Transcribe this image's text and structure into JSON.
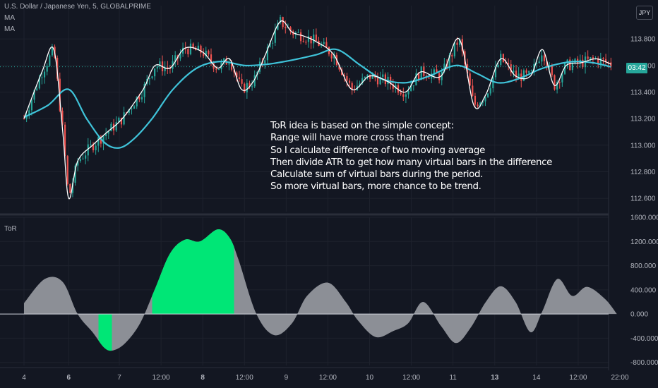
{
  "header": {
    "symbol_line": "U.S. Dollar / Japanese Yen, 5, GLOBALPRIME",
    "indicator_1": "MA",
    "indicator_2": "MA",
    "currency_badge": "JPY",
    "price_countdown": "03:42",
    "sub_pane_title": "ToR"
  },
  "annotation": {
    "lines": [
      "ToR idea is based on the simple concept:",
      "Range will have more cross than trend",
      "So I calculate difference of two moving average",
      "Then divide ATR to get how many virtual bars in the difference",
      "Calculate sum of  virtual bars during the period.",
      "So more virtual bars, more chance to be trend."
    ]
  },
  "colors": {
    "background": "#131722",
    "grid": "#1e222d",
    "ma_fast": "#ffffff",
    "ma_slow": "#3fc3d9",
    "candle_up": "#26a69a",
    "candle_down": "#ef5350",
    "tor_gray": "#8c8f96",
    "tor_green": "#00e676",
    "price_line": "#26a69a"
  },
  "chart_data": [
    {
      "type": "candlestick",
      "title": "U.S. Dollar / Japanese Yen, 5, GLOBALPRIME",
      "xlabel": "",
      "ylabel": "",
      "ylim": [
        112.5,
        114.05
      ],
      "yticks": [
        "113.800",
        "113.600",
        "113.400",
        "113.200",
        "113.000",
        "112.800",
        "112.600"
      ],
      "xticks": [
        "4",
        "6",
        "7",
        "12:00",
        "8",
        "12:00",
        "9",
        "12:00",
        "10",
        "12:00",
        "11",
        "13",
        "14",
        "12:00",
        "22:00"
      ],
      "xticks_pos": [
        0,
        1.5,
        3.2,
        4.6,
        6.0,
        7.4,
        8.8,
        10.2,
        11.6,
        13.0,
        14.4,
        15.8,
        17.2,
        18.6,
        20.0
      ],
      "current_price": 113.59,
      "series": [
        {
          "name": "MA",
          "x": [
            0,
            0.6,
            1.0,
            1.3,
            1.5,
            1.8,
            2.3,
            2.8,
            3.3,
            4.0,
            4.4,
            4.9,
            5.4,
            6.0,
            6.5,
            6.9,
            7.3,
            7.7,
            8.1,
            8.6,
            9.0,
            9.4,
            9.8,
            10.4,
            11.0,
            11.6,
            12.2,
            12.8,
            13.3,
            14.0,
            14.6,
            15.1,
            15.5,
            16.0,
            16.5,
            17.0,
            17.4,
            17.8,
            18.2,
            18.7,
            19.2,
            19.7
          ],
          "values": [
            113.2,
            113.55,
            113.72,
            113.1,
            112.6,
            112.88,
            113.0,
            113.1,
            113.2,
            113.42,
            113.6,
            113.58,
            113.73,
            113.7,
            113.58,
            113.65,
            113.42,
            113.48,
            113.68,
            113.93,
            113.85,
            113.82,
            113.78,
            113.68,
            113.42,
            113.52,
            113.48,
            113.4,
            113.55,
            113.52,
            113.8,
            113.3,
            113.38,
            113.65,
            113.52,
            113.52,
            113.72,
            113.45,
            113.6,
            113.62,
            113.65,
            113.61
          ]
        },
        {
          "name": "MA",
          "x": [
            0,
            0.8,
            1.5,
            2.1,
            2.7,
            3.2,
            3.7,
            4.3,
            5.0,
            5.8,
            6.6,
            7.4,
            8.2,
            9.0,
            9.8,
            10.5,
            11.3,
            12.0,
            12.8,
            13.6,
            14.5,
            15.2,
            15.9,
            16.6,
            17.3,
            17.9,
            18.5,
            19.1,
            19.7
          ],
          "values": [
            113.21,
            113.3,
            113.42,
            113.2,
            113.02,
            112.98,
            113.05,
            113.2,
            113.42,
            113.58,
            113.63,
            113.6,
            113.61,
            113.64,
            113.68,
            113.72,
            113.6,
            113.5,
            113.47,
            113.52,
            113.6,
            113.54,
            113.47,
            113.5,
            113.57,
            113.61,
            113.63,
            113.62,
            113.59
          ]
        }
      ]
    },
    {
      "type": "area",
      "title": "ToR",
      "xlabel": "",
      "ylabel": "",
      "ylim": [
        -850,
        1600
      ],
      "yticks": [
        "1600.000",
        "1200.000",
        "800.000",
        "400.000",
        "0.000",
        "-400.000",
        "-800.000"
      ],
      "grid": true,
      "series": [
        {
          "name": "",
          "x": [
            0,
            0.7,
            1.3,
            1.8,
            2.3,
            2.7,
            3.0,
            3.4,
            3.9,
            4.4,
            4.9,
            5.4,
            5.9,
            6.5,
            6.9,
            7.2,
            7.8,
            8.4,
            9.0,
            9.5,
            10.2,
            10.8,
            11.2,
            11.8,
            12.4,
            12.9,
            13.4,
            14.0,
            14.5,
            15.0,
            15.5,
            16.0,
            16.5,
            17.0,
            17.4,
            17.9,
            18.4,
            18.9,
            19.5,
            19.9
          ],
          "values": [
            180,
            580,
            530,
            0,
            -300,
            -560,
            -600,
            -480,
            -150,
            420,
            1000,
            1230,
            1200,
            1400,
            1260,
            900,
            0,
            -350,
            -150,
            300,
            520,
            200,
            -100,
            -380,
            -280,
            -150,
            200,
            -200,
            -480,
            -220,
            200,
            460,
            200,
            -300,
            50,
            580,
            300,
            450,
            250,
            0
          ]
        }
      ],
      "highlighted_ranges": [
        [
          2.5,
          2.95
        ],
        [
          4.3,
          7.05
        ]
      ]
    }
  ]
}
